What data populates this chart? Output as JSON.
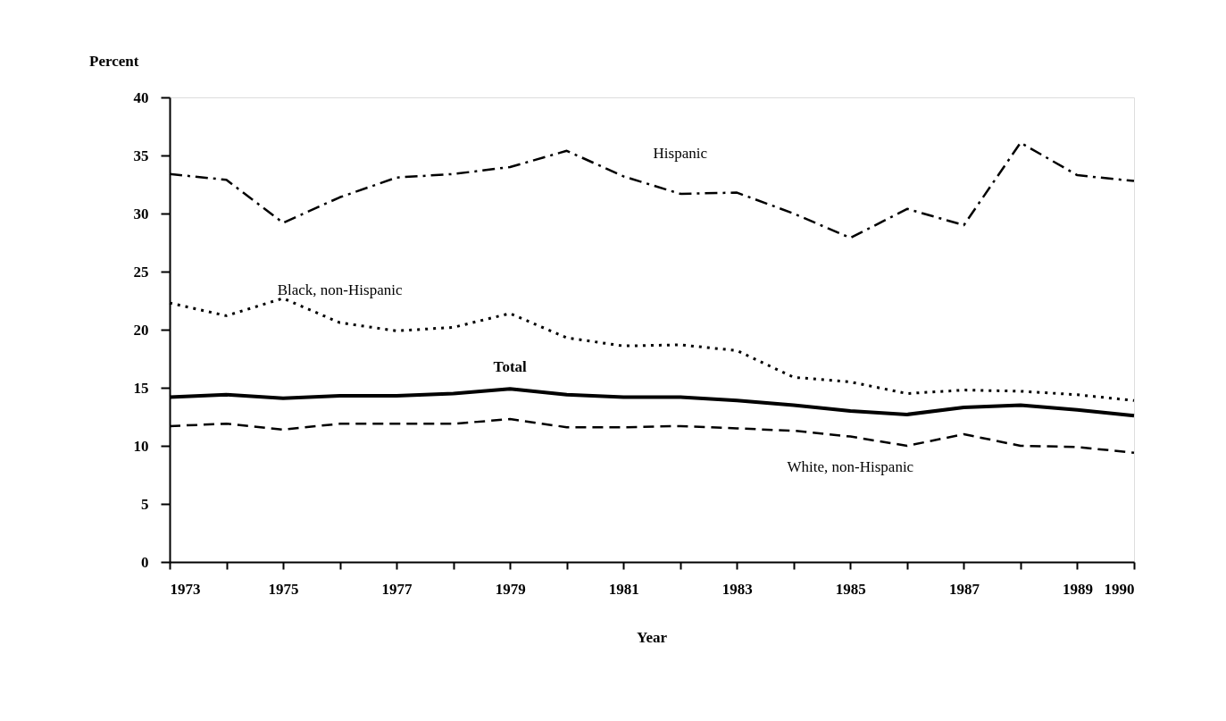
{
  "chart_data": {
    "type": "line",
    "xlabel": "Year",
    "ylabel": "Percent",
    "x": [
      1973,
      1974,
      1975,
      1976,
      1977,
      1978,
      1979,
      1980,
      1981,
      1982,
      1983,
      1984,
      1985,
      1986,
      1987,
      1988,
      1989,
      1990
    ],
    "series": [
      {
        "name": "Hispanic",
        "color": "#000000",
        "line_style": "dashdot",
        "values": [
          33.4,
          32.9,
          29.2,
          31.4,
          33.1,
          33.4,
          34.0,
          35.4,
          33.2,
          31.7,
          31.8,
          30.0,
          27.9,
          30.4,
          29.0,
          36.1,
          33.3,
          32.8
        ]
      },
      {
        "name": "Black, non-Hispanic",
        "color": "#000000",
        "line_style": "dotted",
        "values": [
          22.3,
          21.2,
          22.7,
          20.6,
          19.9,
          20.2,
          21.4,
          19.3,
          18.6,
          18.7,
          18.2,
          15.9,
          15.5,
          14.5,
          14.8,
          14.7,
          14.4,
          13.9
        ]
      },
      {
        "name": "Total",
        "color": "#000000",
        "line_style": "solid",
        "values": [
          14.2,
          14.4,
          14.1,
          14.3,
          14.3,
          14.5,
          14.9,
          14.4,
          14.2,
          14.2,
          13.9,
          13.5,
          13.0,
          12.7,
          13.3,
          13.5,
          13.1,
          12.6
        ]
      },
      {
        "name": "White, non-Hispanic",
        "color": "#000000",
        "line_style": "dashed",
        "values": [
          11.7,
          11.9,
          11.4,
          11.9,
          11.9,
          11.9,
          12.3,
          11.6,
          11.6,
          11.7,
          11.5,
          11.3,
          10.8,
          10.0,
          11.0,
          10.0,
          9.9,
          9.4
        ]
      }
    ],
    "xlim": [
      1973,
      1990
    ],
    "xticks": [
      1973,
      {
        "value": 1974,
        "label": null
      },
      1975,
      {
        "value": 1976,
        "label": null
      },
      1977,
      {
        "value": 1978,
        "label": null
      },
      1979,
      {
        "value": 1980,
        "label": null
      },
      1981,
      {
        "value": 1982,
        "label": null
      },
      1983,
      {
        "value": 1984,
        "label": null
      },
      1985,
      {
        "value": 1986,
        "label": null
      },
      1987,
      {
        "value": 1988,
        "label": null
      },
      1989,
      1990
    ],
    "ylim": [
      0,
      40
    ],
    "yticks": [
      0,
      5,
      10,
      15,
      20,
      25,
      30,
      35,
      40
    ],
    "grid": false,
    "marker": "none"
  }
}
